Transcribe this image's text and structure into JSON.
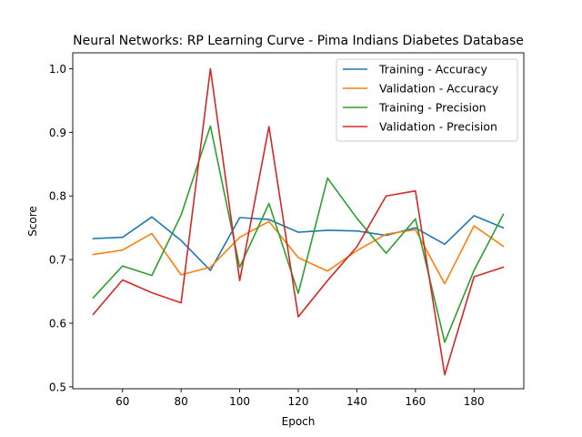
{
  "chart_data": {
    "type": "line",
    "title": "Neural Networks: RP Learning Curve - Pima Indians Diabetes Database",
    "xlabel": "Epoch",
    "ylabel": "Score",
    "xlim": [
      43,
      197
    ],
    "ylim": [
      0.497,
      1.025
    ],
    "x_ticks": [
      60,
      80,
      100,
      120,
      140,
      160,
      180
    ],
    "y_ticks": [
      0.5,
      0.6,
      0.7,
      0.8,
      0.9,
      1.0
    ],
    "y_tick_labels": [
      "0.5",
      "0.6",
      "0.7",
      "0.8",
      "0.9",
      "1.0"
    ],
    "grid": false,
    "legend_position": "top-right",
    "x": [
      50,
      60,
      70,
      80,
      90,
      100,
      110,
      120,
      130,
      140,
      150,
      160,
      170,
      180,
      190
    ],
    "series": [
      {
        "name": "Training - Accuracy",
        "color": "#1f77b4",
        "values": [
          0.733,
          0.735,
          0.767,
          0.73,
          0.683,
          0.766,
          0.763,
          0.743,
          0.746,
          0.745,
          0.738,
          0.75,
          0.724,
          0.769,
          0.75
        ]
      },
      {
        "name": "Validation - Accuracy",
        "color": "#ff7f0e",
        "values": [
          0.708,
          0.715,
          0.741,
          0.676,
          0.688,
          0.735,
          0.76,
          0.703,
          0.682,
          0.714,
          0.74,
          0.747,
          0.662,
          0.753,
          0.721
        ]
      },
      {
        "name": "Training - Precision",
        "color": "#2ca02c",
        "values": [
          0.64,
          0.69,
          0.675,
          0.77,
          0.91,
          0.688,
          0.788,
          0.647,
          0.828,
          0.765,
          0.71,
          0.764,
          0.57,
          0.683,
          0.771
        ]
      },
      {
        "name": "Validation - Precision",
        "color": "#d62728",
        "values": [
          0.614,
          0.668,
          0.648,
          0.632,
          1.0,
          0.667,
          0.909,
          0.61,
          0.667,
          0.72,
          0.8,
          0.808,
          0.519,
          0.673,
          0.688
        ]
      }
    ]
  }
}
